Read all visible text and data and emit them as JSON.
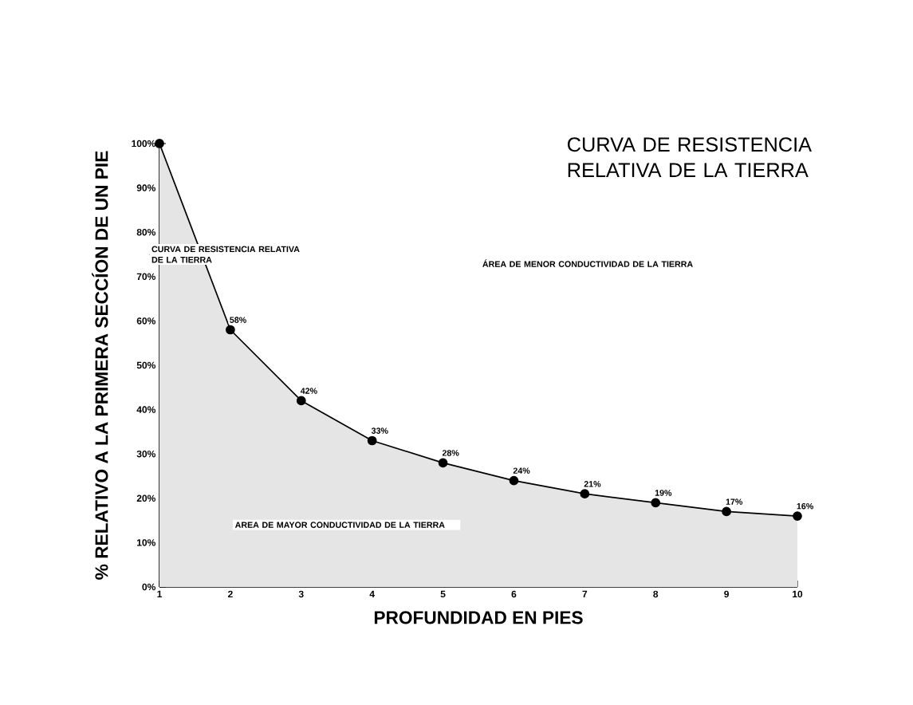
{
  "chart_data": {
    "type": "area",
    "title": "CURVA DE RESISTENCIA RELATIVA DE LA TIERRA",
    "xlabel": "PROFUNDIDAD EN PIES",
    "ylabel": "% RELATIVO A LA PRIMERA SECCÍON DE UN PIE",
    "x": [
      1,
      2,
      3,
      4,
      5,
      6,
      7,
      8,
      9,
      10
    ],
    "series": [
      {
        "color": "#000000",
        "values": [
          100,
          58,
          42,
          33,
          28,
          24,
          21,
          19,
          17,
          16
        ],
        "value_labels": [
          null,
          "58%",
          "42%",
          "33%",
          "28%",
          "24%",
          "21%",
          "19%",
          "17%",
          "16%"
        ]
      }
    ],
    "marker": "circle",
    "xlim": [
      1,
      10
    ],
    "xticks": [
      1,
      2,
      3,
      4,
      5,
      6,
      7,
      8,
      9,
      10
    ],
    "ylim": [
      0,
      100
    ],
    "yticks": [
      {
        "value": 0,
        "label": "0%"
      },
      {
        "value": 10,
        "label": "10%"
      },
      {
        "value": 20,
        "label": "20%"
      },
      {
        "value": 30,
        "label": "30%"
      },
      {
        "value": 40,
        "label": "40%"
      },
      {
        "value": 50,
        "label": "50%"
      },
      {
        "value": 60,
        "label": "60%"
      },
      {
        "value": 70,
        "label": "70%"
      },
      {
        "value": 80,
        "label": "80%"
      },
      {
        "value": 90,
        "label": "90%"
      },
      {
        "value": 100,
        "label": "100%"
      }
    ],
    "annotations": [
      {
        "text": "CURVA DE RESISTENCIA RELATIVA DE LA TIERRA",
        "x": 1.56,
        "y": 75
      },
      "ÁREA DE MENOR CONDUCTIVIDAD DE LA TIERRA",
      "AREA DE MAYOR CONDUCTIVIDAD DE LA TIERRA"
    ],
    "grid": false
  }
}
